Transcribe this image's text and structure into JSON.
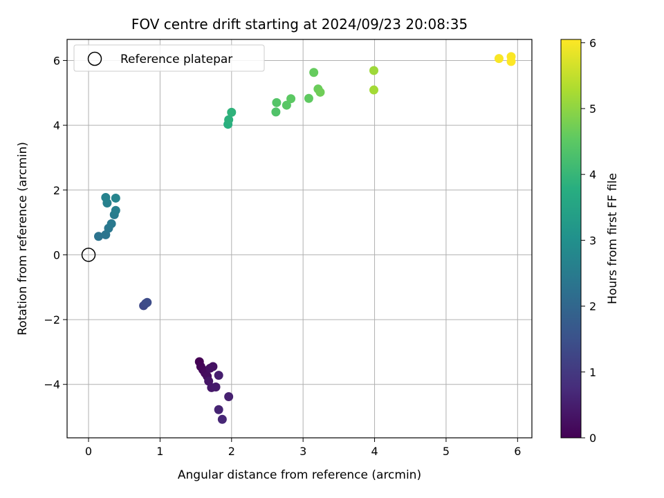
{
  "chart_data": {
    "type": "scatter",
    "title": "FOV centre drift starting at 2024/09/23 20:08:35",
    "xlabel": "Angular distance from reference (arcmin)",
    "ylabel": "Rotation from reference (arcmin)",
    "xlim": [
      -0.3,
      6.2
    ],
    "ylim": [
      -5.65,
      6.65
    ],
    "x_ticks": [
      0,
      1,
      2,
      3,
      4,
      5,
      6
    ],
    "x_tick_labels": [
      "0",
      "1",
      "2",
      "3",
      "4",
      "5",
      "6"
    ],
    "y_ticks": [
      -4,
      -2,
      0,
      2,
      4,
      6
    ],
    "y_tick_labels": [
      "−4",
      "−2",
      "0",
      "2",
      "4",
      "6"
    ],
    "grid": true,
    "legend": {
      "placement": "top-left",
      "entries": [
        "Reference platepar"
      ]
    },
    "reference_point": {
      "x": 0,
      "y": 0
    },
    "colorbar": {
      "label": "Hours from first FF file",
      "range": [
        0,
        6.05
      ],
      "ticks": [
        0,
        1,
        2,
        3,
        4,
        5,
        6
      ],
      "tick_labels": [
        "0",
        "1",
        "2",
        "3",
        "4",
        "5",
        "6"
      ],
      "colormap": "viridis"
    },
    "points": [
      {
        "x": 1.55,
        "y": -3.3,
        "t": 0.0
      },
      {
        "x": 1.57,
        "y": -3.45,
        "t": 0.05
      },
      {
        "x": 1.6,
        "y": -3.55,
        "t": 0.1
      },
      {
        "x": 1.63,
        "y": -3.65,
        "t": 0.15
      },
      {
        "x": 1.66,
        "y": -3.75,
        "t": 0.2
      },
      {
        "x": 1.7,
        "y": -3.5,
        "t": 0.25
      },
      {
        "x": 1.74,
        "y": -3.45,
        "t": 0.3
      },
      {
        "x": 1.68,
        "y": -3.9,
        "t": 0.35
      },
      {
        "x": 1.72,
        "y": -4.1,
        "t": 0.4
      },
      {
        "x": 1.78,
        "y": -4.08,
        "t": 0.45
      },
      {
        "x": 1.82,
        "y": -3.72,
        "t": 0.5
      },
      {
        "x": 1.96,
        "y": -4.38,
        "t": 0.55
      },
      {
        "x": 1.82,
        "y": -4.78,
        "t": 0.6
      },
      {
        "x": 1.87,
        "y": -5.08,
        "t": 0.65
      },
      {
        "x": 0.77,
        "y": -1.57,
        "t": 1.3
      },
      {
        "x": 0.8,
        "y": -1.5,
        "t": 1.35
      },
      {
        "x": 0.82,
        "y": -1.47,
        "t": 1.4
      },
      {
        "x": 0.14,
        "y": 0.57,
        "t": 2.3
      },
      {
        "x": 0.24,
        "y": 0.62,
        "t": 2.35
      },
      {
        "x": 0.28,
        "y": 0.82,
        "t": 2.4
      },
      {
        "x": 0.32,
        "y": 0.96,
        "t": 2.45
      },
      {
        "x": 0.36,
        "y": 1.24,
        "t": 2.5
      },
      {
        "x": 0.38,
        "y": 1.37,
        "t": 2.55
      },
      {
        "x": 0.26,
        "y": 1.6,
        "t": 2.6
      },
      {
        "x": 0.24,
        "y": 1.77,
        "t": 2.65
      },
      {
        "x": 0.38,
        "y": 1.75,
        "t": 2.7
      },
      {
        "x": 1.95,
        "y": 4.03,
        "t": 3.8
      },
      {
        "x": 1.96,
        "y": 4.17,
        "t": 3.85
      },
      {
        "x": 2.0,
        "y": 4.4,
        "t": 3.9
      },
      {
        "x": 2.62,
        "y": 4.41,
        "t": 4.35
      },
      {
        "x": 2.63,
        "y": 4.7,
        "t": 4.4
      },
      {
        "x": 2.77,
        "y": 4.62,
        "t": 4.45
      },
      {
        "x": 2.83,
        "y": 4.82,
        "t": 4.5
      },
      {
        "x": 3.08,
        "y": 4.83,
        "t": 4.55
      },
      {
        "x": 3.15,
        "y": 5.63,
        "t": 4.6
      },
      {
        "x": 3.21,
        "y": 5.12,
        "t": 4.65
      },
      {
        "x": 3.24,
        "y": 5.02,
        "t": 4.7
      },
      {
        "x": 3.99,
        "y": 5.69,
        "t": 5.15
      },
      {
        "x": 3.99,
        "y": 5.09,
        "t": 5.2
      },
      {
        "x": 5.74,
        "y": 6.06,
        "t": 6.0
      },
      {
        "x": 5.91,
        "y": 6.12,
        "t": 6.02
      },
      {
        "x": 5.91,
        "y": 5.97,
        "t": 6.05
      }
    ]
  }
}
